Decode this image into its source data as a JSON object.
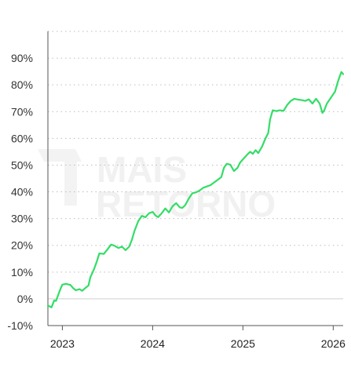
{
  "watermark": {
    "line1": "MAIS",
    "line2": "RETORNO"
  },
  "chart_data": {
    "type": "line",
    "title": "",
    "xlabel": "",
    "ylabel": "",
    "ylim": [
      -10,
      100
    ],
    "xlim": [
      2022.84,
      2026.11
    ],
    "yticks": [
      -10,
      0,
      10,
      20,
      30,
      40,
      50,
      60,
      70,
      80,
      90
    ],
    "ytick_labels": [
      "-10%",
      "0%",
      "10%",
      "20%",
      "30%",
      "40%",
      "50%",
      "60%",
      "70%",
      "80%",
      "90%"
    ],
    "xticks": [
      2023,
      2024,
      2025,
      2026
    ],
    "xtick_labels": [
      "2023",
      "2024",
      "2025",
      "2026"
    ],
    "grid": true,
    "legend": "none",
    "colors": {
      "line": "#33dd66",
      "grid": "#bdbdbd",
      "axis": "#555555"
    },
    "series": [
      {
        "color": "#33dd66",
        "points": [
          [
            2022.84,
            -2.5
          ],
          [
            2022.88,
            -3.2
          ],
          [
            2022.91,
            -0.6
          ],
          [
            2022.93,
            -0.8
          ],
          [
            2022.96,
            2.0
          ],
          [
            2022.98,
            3.8
          ],
          [
            2023.0,
            5.3
          ],
          [
            2023.04,
            5.6
          ],
          [
            2023.09,
            5.2
          ],
          [
            2023.12,
            4.0
          ],
          [
            2023.15,
            3.2
          ],
          [
            2023.19,
            3.6
          ],
          [
            2023.22,
            3.0
          ],
          [
            2023.26,
            4.2
          ],
          [
            2023.29,
            5.0
          ],
          [
            2023.31,
            8.0
          ],
          [
            2023.35,
            11.0
          ],
          [
            2023.38,
            13.8
          ],
          [
            2023.41,
            17.0
          ],
          [
            2023.46,
            16.8
          ],
          [
            2023.5,
            18.5
          ],
          [
            2023.54,
            20.3
          ],
          [
            2023.58,
            19.8
          ],
          [
            2023.62,
            19.0
          ],
          [
            2023.66,
            19.5
          ],
          [
            2023.7,
            18.2
          ],
          [
            2023.74,
            19.5
          ],
          [
            2023.77,
            22.0
          ],
          [
            2023.8,
            25.5
          ],
          [
            2023.84,
            29.0
          ],
          [
            2023.88,
            31.0
          ],
          [
            2023.92,
            30.5
          ],
          [
            2023.96,
            32.0
          ],
          [
            2024.0,
            32.5
          ],
          [
            2024.03,
            31.2
          ],
          [
            2024.06,
            30.5
          ],
          [
            2024.1,
            32.0
          ],
          [
            2024.14,
            33.8
          ],
          [
            2024.18,
            32.3
          ],
          [
            2024.22,
            34.6
          ],
          [
            2024.26,
            35.8
          ],
          [
            2024.3,
            34.2
          ],
          [
            2024.33,
            34.0
          ],
          [
            2024.36,
            35.0
          ],
          [
            2024.4,
            37.5
          ],
          [
            2024.44,
            39.5
          ],
          [
            2024.48,
            39.8
          ],
          [
            2024.52,
            40.5
          ],
          [
            2024.56,
            41.5
          ],
          [
            2024.6,
            42.0
          ],
          [
            2024.64,
            42.5
          ],
          [
            2024.68,
            43.5
          ],
          [
            2024.72,
            44.5
          ],
          [
            2024.76,
            45.5
          ],
          [
            2024.79,
            49.0
          ],
          [
            2024.82,
            50.5
          ],
          [
            2024.86,
            50.2
          ],
          [
            2024.9,
            47.8
          ],
          [
            2024.94,
            49.0
          ],
          [
            2024.97,
            51.0
          ],
          [
            2025.01,
            52.5
          ],
          [
            2025.05,
            54.0
          ],
          [
            2025.08,
            55.0
          ],
          [
            2025.11,
            54.2
          ],
          [
            2025.14,
            55.6
          ],
          [
            2025.17,
            54.5
          ],
          [
            2025.21,
            56.8
          ],
          [
            2025.25,
            60.0
          ],
          [
            2025.28,
            62.0
          ],
          [
            2025.3,
            67.0
          ],
          [
            2025.33,
            70.5
          ],
          [
            2025.37,
            70.2
          ],
          [
            2025.41,
            70.5
          ],
          [
            2025.45,
            70.3
          ],
          [
            2025.49,
            72.5
          ],
          [
            2025.53,
            74.0
          ],
          [
            2025.57,
            74.8
          ],
          [
            2025.61,
            74.5
          ],
          [
            2025.65,
            74.3
          ],
          [
            2025.69,
            74.0
          ],
          [
            2025.73,
            74.6
          ],
          [
            2025.77,
            73.0
          ],
          [
            2025.81,
            74.8
          ],
          [
            2025.85,
            73.0
          ],
          [
            2025.88,
            69.5
          ],
          [
            2025.9,
            70.5
          ],
          [
            2025.93,
            73.0
          ],
          [
            2025.96,
            74.5
          ],
          [
            2025.99,
            76.0
          ],
          [
            2026.02,
            77.5
          ],
          [
            2026.05,
            81.0
          ],
          [
            2026.07,
            83.0
          ],
          [
            2026.09,
            84.8
          ],
          [
            2026.11,
            84.0
          ]
        ]
      }
    ]
  }
}
